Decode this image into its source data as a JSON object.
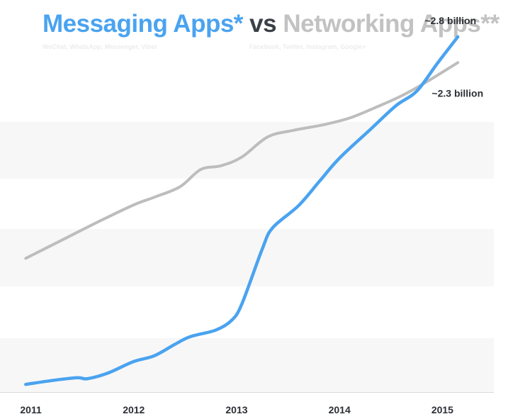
{
  "title": {
    "part1": "Messaging Apps*",
    "part2": "vs",
    "part3": "Networking Apps**"
  },
  "subtitles": {
    "messaging": "WeChat, WhatsApp, Messenger, Viber",
    "networking": "Facebook, Twitter, Instagram, Google+"
  },
  "colors": {
    "messaging": "#4aa3f0",
    "networking": "#bdbdbd",
    "band": "#f7f7f7",
    "axis": "#2c2f35"
  },
  "chart_data": {
    "type": "line",
    "xlabel": "",
    "ylabel": "",
    "x_ticks": [
      "2011",
      "2012",
      "2013",
      "2014",
      "2015"
    ],
    "xlim": [
      2010.7,
      2015.5
    ],
    "ylim": [
      0,
      3.4
    ],
    "grid": false,
    "legend": "none",
    "series": [
      {
        "key": "messaging",
        "x": [
          2010.95,
          2011.2,
          2011.45,
          2011.55,
          2011.75,
          2012.0,
          2012.2,
          2012.4,
          2012.55,
          2012.8,
          2012.95,
          2013.05,
          2013.25,
          2013.35,
          2013.6,
          2013.8,
          2014.0,
          2014.3,
          2014.55,
          2014.75,
          2014.95,
          2015.15
        ],
        "y": [
          0.08,
          0.12,
          0.15,
          0.14,
          0.2,
          0.32,
          0.38,
          0.5,
          0.58,
          0.65,
          0.75,
          0.92,
          1.5,
          1.72,
          1.95,
          2.2,
          2.45,
          2.75,
          3.0,
          3.15,
          3.44,
          3.72
        ]
      },
      {
        "key": "networking",
        "x": [
          2010.95,
          2011.3,
          2011.65,
          2012.0,
          2012.2,
          2012.45,
          2012.65,
          2012.85,
          2013.05,
          2013.3,
          2013.55,
          2013.85,
          2014.1,
          2014.35,
          2014.6,
          2014.85,
          2015.15
        ],
        "y": [
          1.4,
          1.59,
          1.78,
          1.96,
          2.04,
          2.15,
          2.33,
          2.37,
          2.46,
          2.67,
          2.74,
          2.8,
          2.87,
          2.98,
          3.1,
          3.25,
          3.45
        ]
      }
    ],
    "annotations": [
      {
        "text": "~2.8 billion",
        "series": "messaging"
      },
      {
        "text": "~2.3 billion",
        "series": "networking"
      }
    ]
  }
}
